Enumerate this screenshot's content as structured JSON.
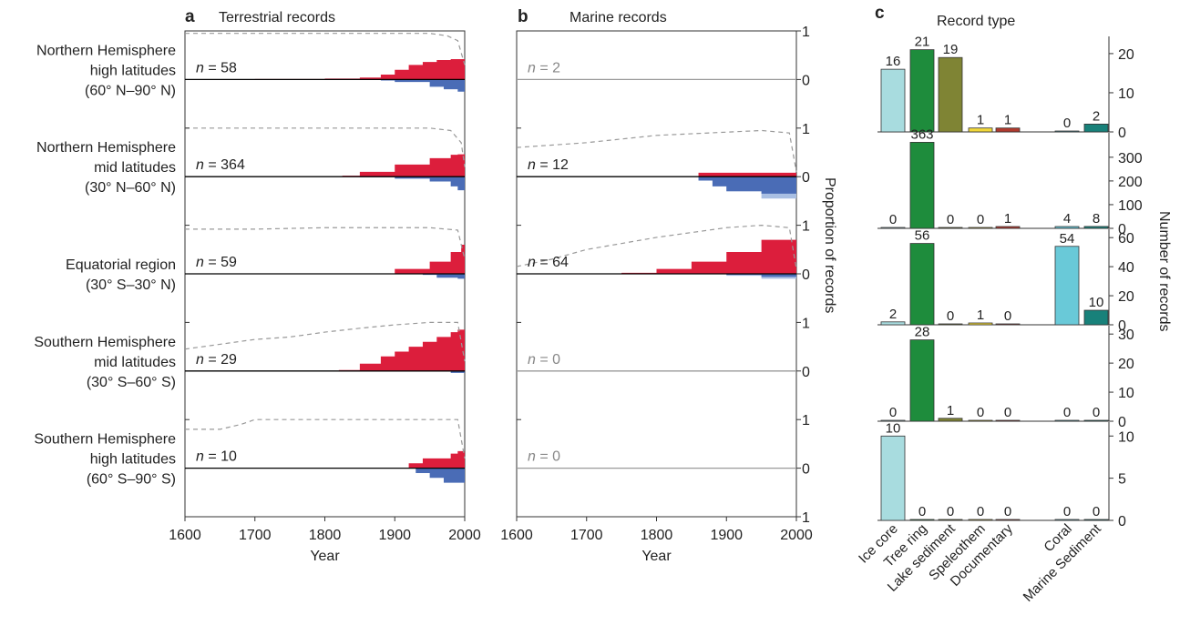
{
  "panels": {
    "a": {
      "letter": "a",
      "title": "Terrestrial records"
    },
    "b": {
      "letter": "b",
      "title": "Marine records"
    },
    "c": {
      "letter": "c",
      "title": "Record type"
    }
  },
  "regions": [
    {
      "lines": [
        "Northern Hemisphere",
        "high latitudes",
        "(60° N–90° N)"
      ]
    },
    {
      "lines": [
        "Northern Hemisphere",
        "mid latitudes",
        "(30° N–60° N)"
      ]
    },
    {
      "lines": [
        "Equatorial region",
        "(30° S–30° N)"
      ]
    },
    {
      "lines": [
        "Southern Hemisphere",
        "mid latitudes",
        "(30° S–60° S)"
      ]
    },
    {
      "lines": [
        "Southern Hemisphere",
        "high latitudes",
        "(60° S–90° S)"
      ]
    }
  ],
  "n_prefix": "n = ",
  "right_axis_title": "Proportion of records",
  "right_ticks": [
    "1",
    "0",
    "1",
    "0",
    "1",
    "0",
    "1",
    "0",
    "1",
    "0",
    "1"
  ],
  "year_axis": {
    "title": "Year",
    "ticks": [
      "1600",
      "1700",
      "1800",
      "1900",
      "2000"
    ]
  },
  "colors": {
    "warming": "#dc1e3c",
    "cooling": "#4a6cb6",
    "cooling_light": "#a9bfe3",
    "count_line": "#999999",
    "axis": "#333333",
    "zero_line": "#000000",
    "zero_line_empty": "#999999"
  },
  "chart_data": [
    {
      "type": "area",
      "title": "Terrestrial records",
      "xlabel": "Year",
      "ylabel": "Proportion of records",
      "xlim": [
        1600,
        2000
      ],
      "ylim": [
        -1,
        1
      ],
      "note": "",
      "regions": [
        {
          "n": 58,
          "empty": false,
          "warming": {
            "x": [
              1600,
              1700,
              1800,
              1850,
              1880,
              1900,
              1920,
              1940,
              1960,
              1980,
              1995,
              2000
            ],
            "y": [
              0.0,
              0.01,
              0.02,
              0.04,
              0.1,
              0.2,
              0.3,
              0.36,
              0.4,
              0.42,
              0.42,
              0.3
            ]
          },
          "cooling": {
            "x": [
              1600,
              1800,
              1880,
              1900,
              1950,
              1970,
              1990,
              2000
            ],
            "y": [
              0.0,
              0.0,
              -0.02,
              -0.05,
              -0.15,
              -0.2,
              -0.25,
              -0.28
            ]
          },
          "count": {
            "x": [
              1600,
              1700,
              1800,
              1900,
              1950,
              1975,
              1990,
              2000
            ],
            "y": [
              0.95,
              0.95,
              0.95,
              0.95,
              0.95,
              0.9,
              0.8,
              0.3
            ]
          }
        },
        {
          "n": 364,
          "empty": false,
          "warming": {
            "x": [
              1600,
              1800,
              1825,
              1850,
              1900,
              1950,
              1980,
              1990,
              2000
            ],
            "y": [
              0.0,
              0.0,
              0.02,
              0.1,
              0.25,
              0.38,
              0.45,
              0.46,
              0.4
            ]
          },
          "cooling": {
            "x": [
              1600,
              1850,
              1900,
              1950,
              1980,
              1990,
              2000
            ],
            "y": [
              0.0,
              -0.01,
              -0.04,
              -0.1,
              -0.2,
              -0.28,
              -0.28
            ]
          },
          "count": {
            "x": [
              1600,
              1700,
              1800,
              1900,
              1950,
              1980,
              1995,
              2000
            ],
            "y": [
              1.0,
              1.0,
              1.0,
              1.0,
              1.0,
              0.95,
              0.7,
              0.2
            ]
          }
        },
        {
          "n": 59,
          "empty": false,
          "warming": {
            "x": [
              1600,
              1800,
              1850,
              1900,
              1950,
              1980,
              1995,
              2000
            ],
            "y": [
              0.0,
              0.0,
              0.01,
              0.1,
              0.25,
              0.45,
              0.6,
              0.6
            ]
          },
          "cooling": {
            "x": [
              1600,
              1900,
              1940,
              1960,
              1990,
              2000
            ],
            "y": [
              0.0,
              0.0,
              -0.02,
              -0.08,
              -0.1,
              -0.1
            ]
          },
          "count": {
            "x": [
              1600,
              1700,
              1800,
              1900,
              1950,
              1990,
              2000
            ],
            "y": [
              0.92,
              0.92,
              0.95,
              0.95,
              0.95,
              0.9,
              0.3
            ]
          }
        },
        {
          "n": 29,
          "empty": false,
          "warming": {
            "x": [
              1600,
              1820,
              1850,
              1880,
              1900,
              1920,
              1940,
              1960,
              1980,
              1990,
              2000
            ],
            "y": [
              0.0,
              0.02,
              0.15,
              0.3,
              0.4,
              0.5,
              0.6,
              0.7,
              0.8,
              0.85,
              0.85
            ]
          },
          "cooling": {
            "x": [
              1600,
              1950,
              1980,
              2000
            ],
            "y": [
              0.0,
              0.0,
              -0.04,
              -0.04
            ]
          },
          "count": {
            "x": [
              1600,
              1650,
              1700,
              1750,
              1800,
              1850,
              1900,
              1950,
              1990,
              2000
            ],
            "y": [
              0.45,
              0.55,
              0.65,
              0.7,
              0.8,
              0.88,
              0.95,
              1.0,
              1.0,
              0.2
            ]
          }
        },
        {
          "n": 10,
          "empty": false,
          "warming": {
            "x": [
              1600,
              1920,
              1940,
              1960,
              1980,
              1990,
              2000
            ],
            "y": [
              0.0,
              0.1,
              0.2,
              0.2,
              0.3,
              0.35,
              0.35
            ]
          },
          "cooling": {
            "x": [
              1600,
              1930,
              1950,
              1970,
              2000
            ],
            "y": [
              0.0,
              -0.1,
              -0.2,
              -0.3,
              -0.3
            ]
          },
          "count": {
            "x": [
              1600,
              1650,
              1680,
              1700,
              1900,
              1990,
              2000
            ],
            "y": [
              0.8,
              0.8,
              0.9,
              1.0,
              1.0,
              1.0,
              0.2
            ]
          }
        }
      ]
    },
    {
      "type": "area",
      "title": "Marine records",
      "xlabel": "Year",
      "ylabel": "Proportion of records",
      "xlim": [
        1600,
        2000
      ],
      "ylim": [
        -1,
        1
      ],
      "regions": [
        {
          "n": 2,
          "empty": true
        },
        {
          "n": 12,
          "empty": false,
          "warming": {
            "x": [
              1600,
              1860,
              2000
            ],
            "y": [
              0.0,
              0.08,
              0.08
            ]
          },
          "cooling": {
            "x": [
              1600,
              1860,
              1880,
              1900,
              1950,
              2000
            ],
            "y": [
              0.0,
              -0.08,
              -0.2,
              -0.3,
              -0.35,
              -0.35
            ]
          },
          "cooling_light": {
            "x": [
              1600,
              1880,
              1900,
              1950,
              2000
            ],
            "y": [
              0.0,
              -0.1,
              -0.3,
              -0.45,
              -0.5
            ]
          },
          "count": {
            "x": [
              1600,
              1650,
              1700,
              1800,
              1950,
              1990,
              2000
            ],
            "y": [
              0.6,
              0.65,
              0.7,
              0.85,
              0.95,
              0.9,
              0.1
            ]
          }
        },
        {
          "n": 64,
          "empty": false,
          "warming": {
            "x": [
              1600,
              1700,
              1750,
              1800,
              1850,
              1900,
              1950,
              2000
            ],
            "y": [
              0.0,
              0.01,
              0.02,
              0.1,
              0.25,
              0.45,
              0.7,
              0.8
            ]
          },
          "cooling": {
            "x": [
              1600,
              1900,
              1950,
              2000
            ],
            "y": [
              0.0,
              -0.02,
              -0.06,
              -0.06
            ]
          },
          "cooling_light": {
            "x": [
              1600,
              1900,
              1950,
              2000
            ],
            "y": [
              0.0,
              -0.04,
              -0.1,
              -0.15
            ]
          },
          "count": {
            "x": [
              1600,
              1650,
              1700,
              1800,
              1900,
              1950,
              1990,
              2000
            ],
            "y": [
              0.15,
              0.3,
              0.5,
              0.75,
              0.95,
              1.0,
              0.95,
              0.1
            ]
          }
        },
        {
          "n": 0,
          "empty": true
        },
        {
          "n": 0,
          "empty": true
        }
      ]
    },
    {
      "type": "bar",
      "title": "Record type",
      "ylabel": "Number of records",
      "categories": [
        "Ice core",
        "Tree ring",
        "Lake sediment",
        "Speleothem",
        "Documentary",
        "Coral",
        "Marine Sediment"
      ],
      "category_colors": [
        "#a8dcdf",
        "#1e8c3c",
        "#7f8434",
        "#f1d73a",
        "#b03a2e",
        "#69c9d8",
        "#18817a"
      ],
      "rows": [
        {
          "values": [
            16,
            21,
            19,
            1,
            1,
            0,
            2
          ],
          "ylim": [
            0,
            23
          ],
          "yticks": [
            "0",
            "10",
            "20"
          ]
        },
        {
          "values": [
            0,
            363,
            0,
            0,
            1,
            4,
            8
          ],
          "ylim": [
            0,
            380
          ],
          "yticks": [
            "0",
            "100",
            "200",
            "300"
          ]
        },
        {
          "values": [
            2,
            56,
            0,
            1,
            0,
            54,
            10
          ],
          "ylim": [
            0,
            62
          ],
          "yticks": [
            "0",
            "20",
            "40",
            "60"
          ]
        },
        {
          "values": [
            0,
            28,
            1,
            0,
            0,
            0,
            0
          ],
          "ylim": [
            0,
            31
          ],
          "yticks": [
            "0",
            "10",
            "20",
            "30"
          ]
        },
        {
          "values": [
            10,
            0,
            0,
            0,
            0,
            0,
            0
          ],
          "ylim": [
            0,
            11
          ],
          "yticks": [
            "0",
            "5",
            "10"
          ]
        }
      ]
    }
  ]
}
